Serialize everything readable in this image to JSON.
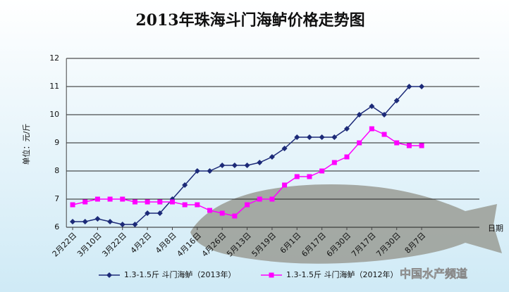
{
  "chart_data": {
    "type": "line",
    "title": "2013年珠海斗门海鲈价格走势图",
    "y_label": "单位：元/斤",
    "x_label": "日期",
    "watermark": "中国水产频道",
    "categories": [
      "2月22日",
      null,
      "3月10日",
      null,
      "3月22日",
      null,
      "4月2日",
      null,
      "4月8日",
      null,
      "4月16日",
      null,
      "4月26日",
      null,
      "5月13日",
      null,
      "5月19日",
      null,
      "6月1日",
      null,
      "6月17日",
      null,
      "6月30日",
      null,
      "7月17日",
      null,
      "7月30日",
      null,
      "8月7日"
    ],
    "series": [
      {
        "name": "1.3-1.5斤 斗门海鲈（2013年）",
        "color": "#1c2a78",
        "marker": "diamond",
        "values": [
          6.2,
          6.2,
          6.3,
          6.2,
          6.1,
          6.1,
          6.5,
          6.5,
          7.0,
          7.5,
          8.0,
          8.0,
          8.2,
          8.2,
          8.2,
          8.3,
          8.5,
          8.8,
          9.2,
          9.2,
          9.2,
          9.2,
          9.5,
          10.0,
          10.3,
          10.0,
          10.5,
          11.0,
          11.0
        ]
      },
      {
        "name": "1.3-1.5斤 斗门海鲈（2012年）",
        "color": "#ff00ff",
        "marker": "square",
        "values": [
          6.8,
          6.9,
          7.0,
          7.0,
          7.0,
          6.9,
          6.9,
          6.9,
          6.9,
          6.8,
          6.8,
          6.6,
          6.5,
          6.4,
          6.8,
          7.0,
          7.0,
          7.5,
          7.8,
          7.8,
          8.0,
          8.3,
          8.5,
          9.0,
          9.5,
          9.3,
          9.0,
          8.9,
          8.9
        ]
      }
    ],
    "ylim": [
      6,
      12
    ],
    "yticks": [
      6,
      7,
      8,
      9,
      10,
      11,
      12
    ],
    "grid": true
  }
}
